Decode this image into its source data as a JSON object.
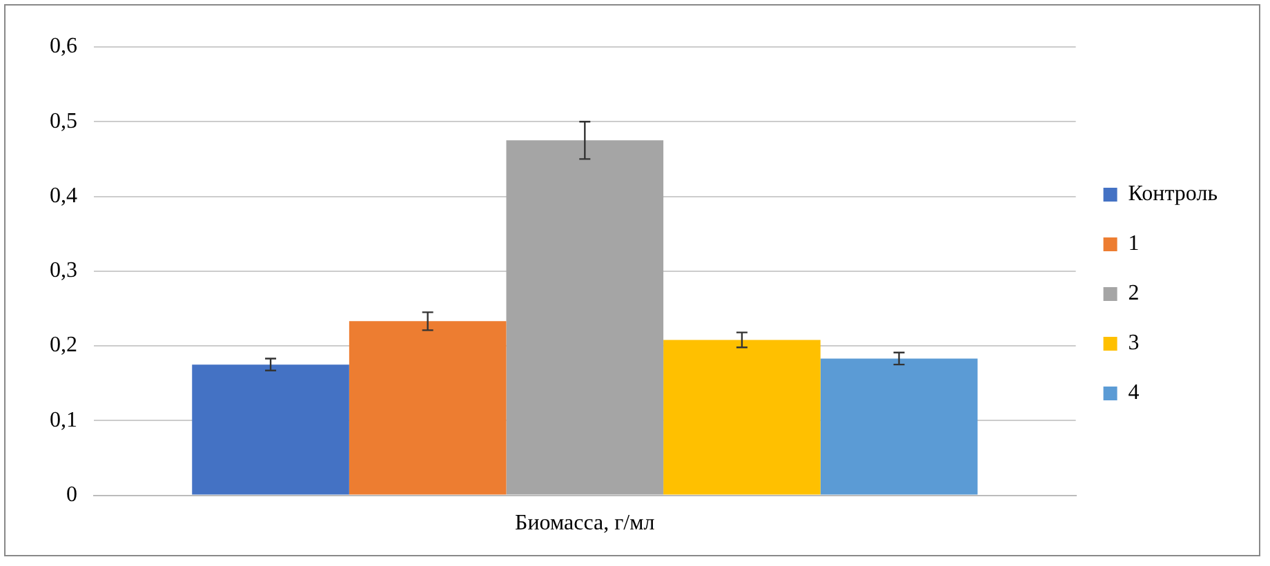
{
  "chart_data": {
    "type": "bar",
    "categories": [
      "Биомасса, г/мл"
    ],
    "series": [
      {
        "name": "Контроль",
        "color": "#4472c4",
        "values": [
          0.175
        ],
        "errors": [
          0.008
        ]
      },
      {
        "name": "1",
        "color": "#ed7d31",
        "values": [
          0.233
        ],
        "errors": [
          0.012
        ]
      },
      {
        "name": "2",
        "color": "#a5a5a5",
        "values": [
          0.475
        ],
        "errors": [
          0.025
        ]
      },
      {
        "name": "3",
        "color": "#ffc000",
        "values": [
          0.208
        ],
        "errors": [
          0.01
        ]
      },
      {
        "name": "4",
        "color": "#5b9bd5",
        "values": [
          0.183
        ],
        "errors": [
          0.008
        ]
      }
    ],
    "ylim": [
      0,
      0.6
    ],
    "yticks": [
      {
        "value": 0,
        "label": "0"
      },
      {
        "value": 0.1,
        "label": "0,1"
      },
      {
        "value": 0.2,
        "label": "0,2"
      },
      {
        "value": 0.3,
        "label": "0,3"
      },
      {
        "value": 0.4,
        "label": "0,4"
      },
      {
        "value": 0.5,
        "label": "0,5"
      },
      {
        "value": 0.6,
        "label": "0,6"
      }
    ],
    "grid": "y",
    "legend": "right"
  }
}
